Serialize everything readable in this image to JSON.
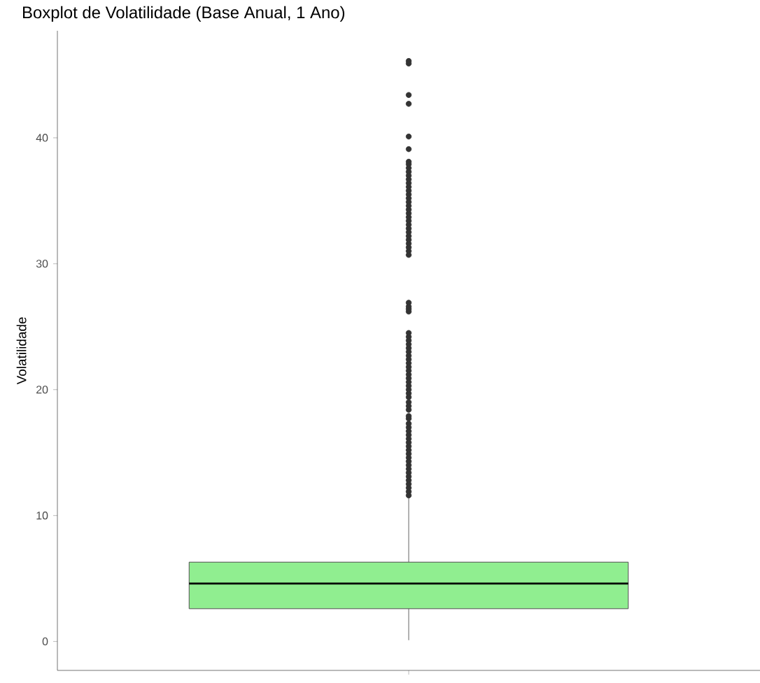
{
  "chart_data": {
    "type": "box",
    "title": "Boxplot de Volatilidade (Base Anual, 1 Ano)",
    "ylabel": "Volatilidade",
    "categories": [
      null
    ],
    "color": "#90ee90",
    "boxes": [
      {
        "low": 0.1,
        "q1": 2.6,
        "median": 4.6,
        "q3": 6.3,
        "high": 11.6,
        "outliers": [
          11.6,
          11.9,
          12.2,
          12.5,
          12.8,
          13.1,
          13.4,
          13.7,
          14.0,
          14.3,
          14.6,
          14.9,
          15.2,
          15.5,
          15.8,
          16.1,
          16.4,
          16.7,
          17.0,
          17.3,
          17.7,
          17.9,
          18.4,
          18.7,
          19.0,
          19.4,
          19.7,
          20.0,
          20.3,
          20.6,
          20.9,
          21.2,
          21.5,
          21.8,
          22.1,
          22.4,
          22.7,
          23.0,
          23.3,
          23.6,
          23.9,
          24.2,
          24.5,
          26.2,
          26.4,
          26.6,
          26.9,
          30.7,
          31.0,
          31.3,
          31.6,
          31.9,
          32.2,
          32.5,
          32.8,
          33.1,
          33.4,
          33.7,
          34.0,
          34.3,
          34.6,
          34.9,
          35.2,
          35.5,
          35.8,
          36.1,
          36.4,
          36.7,
          37.0,
          37.3,
          37.6,
          37.9,
          38.1,
          39.1,
          40.1,
          42.7,
          43.4,
          45.9,
          46.1
        ]
      }
    ],
    "ylim": [
      -2.3,
      48.5
    ],
    "yticks": [
      0,
      10,
      20,
      30,
      40
    ]
  }
}
